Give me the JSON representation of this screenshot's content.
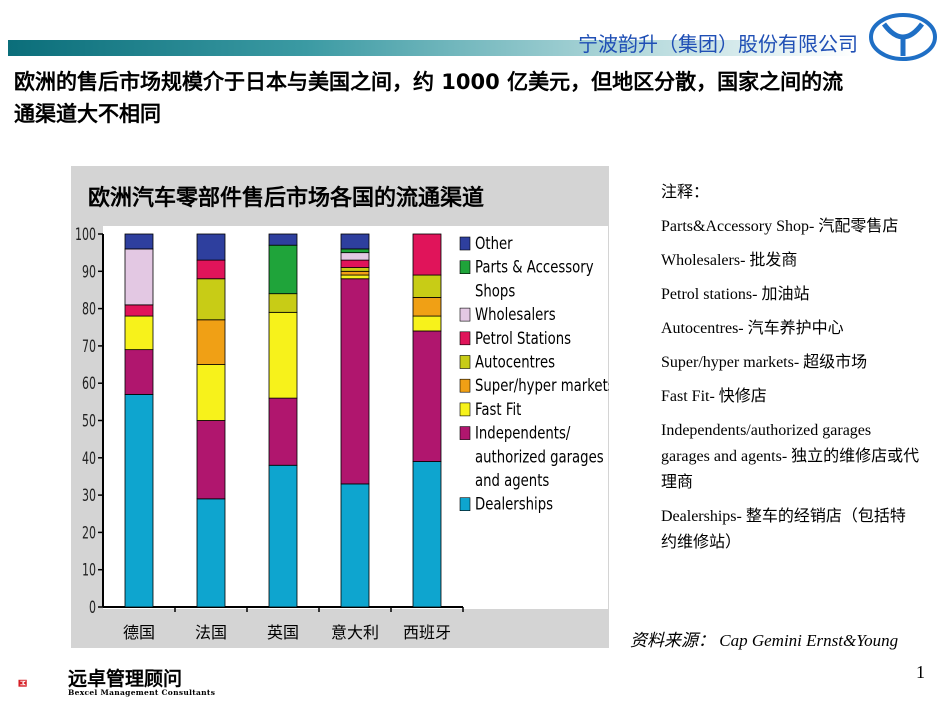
{
  "header": {
    "company": "宁波韵升（集团）股份有限公司",
    "headline": "欧洲的售后市场规模介于日本与美国之间，约 1000 亿美元，但地区分散，国家之间的流通渠道大不相同"
  },
  "chart_data": {
    "type": "bar",
    "stacked": true,
    "title": "欧洲汽车零部件售后市场各国的流通渠道",
    "categories": [
      "德国",
      "法国",
      "英国",
      "意大利",
      "西班牙"
    ],
    "ylim": [
      0,
      100
    ],
    "yticks": [
      0,
      10,
      20,
      30,
      40,
      50,
      60,
      70,
      80,
      90,
      100
    ],
    "legend_position": "right",
    "legend": [
      {
        "label": "Other",
        "color": "#2e3f9e"
      },
      {
        "label": "Parts & Accessory Shops",
        "color": "#1fa43a"
      },
      {
        "label": "Wholesalers",
        "color": "#e3c8e3"
      },
      {
        "label": "Petrol Stations",
        "color": "#e0145a"
      },
      {
        "label": "Autocentres",
        "color": "#c8cc16"
      },
      {
        "label": "Super/hyper markets",
        "color": "#f0a015"
      },
      {
        "label": "Fast Fit",
        "color": "#f7f21b"
      },
      {
        "label": "Independents/ authorized garages and agents",
        "color": "#b0166e"
      },
      {
        "label": "Dealerships",
        "color": "#0ea5cf"
      }
    ],
    "series": [
      {
        "name": "Dealerships",
        "color": "#0ea5cf",
        "values": [
          57,
          29,
          38,
          33,
          39
        ]
      },
      {
        "name": "Independents/authorized garages and agents",
        "color": "#b0166e",
        "values": [
          12,
          21,
          18,
          55,
          35
        ]
      },
      {
        "name": "Fast Fit",
        "color": "#f7f21b",
        "values": [
          9,
          15,
          23,
          1,
          4
        ]
      },
      {
        "name": "Super/hyper markets",
        "color": "#f0a015",
        "values": [
          0,
          12,
          0,
          1,
          5
        ]
      },
      {
        "name": "Autocentres",
        "color": "#c8cc16",
        "values": [
          0,
          11,
          5,
          1,
          6
        ]
      },
      {
        "name": "Petrol Stations",
        "color": "#e0145a",
        "values": [
          3,
          5,
          0,
          2,
          11
        ]
      },
      {
        "name": "Wholesalers",
        "color": "#e3c8e3",
        "values": [
          15,
          0,
          0,
          2,
          0
        ]
      },
      {
        "name": "Parts & Accessory Shops",
        "color": "#1fa43a",
        "values": [
          0,
          0,
          13,
          1,
          0
        ]
      },
      {
        "name": "Other",
        "color": "#2e3f9e",
        "values": [
          4,
          7,
          3,
          4,
          0
        ]
      }
    ]
  },
  "notes": {
    "title": "注释：",
    "items": [
      "Parts&Accessory Shop- 汽配零售店",
      "Wholesalers- 批发商",
      "Petrol stations- 加油站",
      "Autocentres- 汽车养护中心",
      "Super/hyper markets- 超级市场",
      "Fast Fit- 快修店",
      "Independents/authorized garages garages and agents- 独立的维修店或代理商",
      "Dealerships- 整车的经销店（包括特约维修站）"
    ]
  },
  "source": "资料来源： Cap Gemini Ernst&Young",
  "footer": {
    "brand_cn": "远卓管理顾问",
    "brand_en": "Bexcel Management Consultants",
    "page_number": "1"
  }
}
